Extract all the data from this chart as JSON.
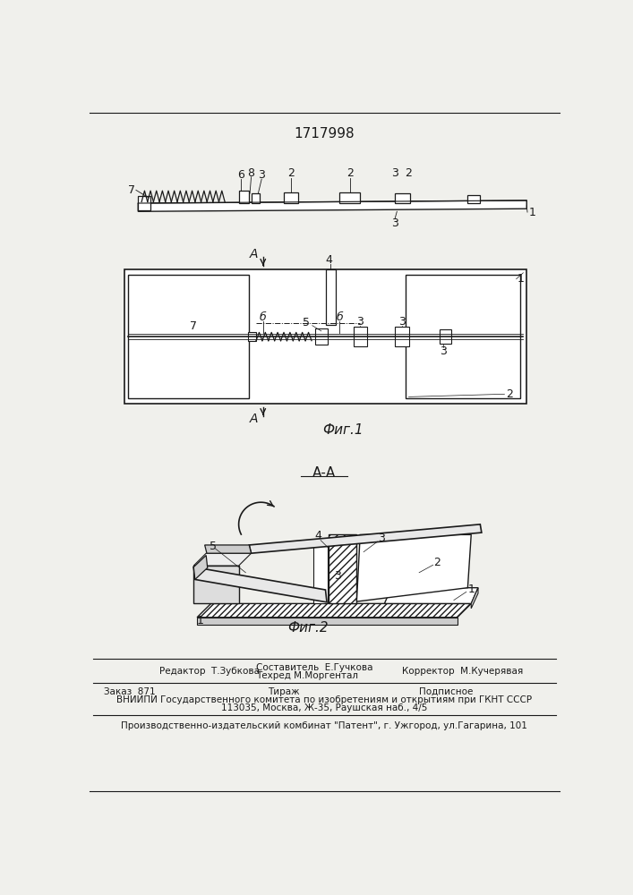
{
  "patent_number": "1717998",
  "bg_color": "#f0f0ec",
  "line_color": "#1a1a1a",
  "fig1_label": "Фиг.1",
  "fig2_label": "Фиг.2",
  "section_label": "А-А",
  "editor_line": "Редактор  Т.Зубкова",
  "composer_line1": "Составитель  Е.Гучкова",
  "composer_line2": "Техред М.Моргентал",
  "corrector_line": "Корректор  М.Кучерявая",
  "order_line": "Заказ  871",
  "tirage_line": "Тираж",
  "podpisnoe_line": "Подписное",
  "vnipi_line": "ВНИИПИ Государственного комитета по изобретениям и открытиям при ГКНТ СССР",
  "address_line": "113035, Москва, Ж-35, Раушская наб., 4/5",
  "factory_line": "Производственно-издательский комбинат \"Патент\", г. Ужгород, ул.Гагарина, 101"
}
